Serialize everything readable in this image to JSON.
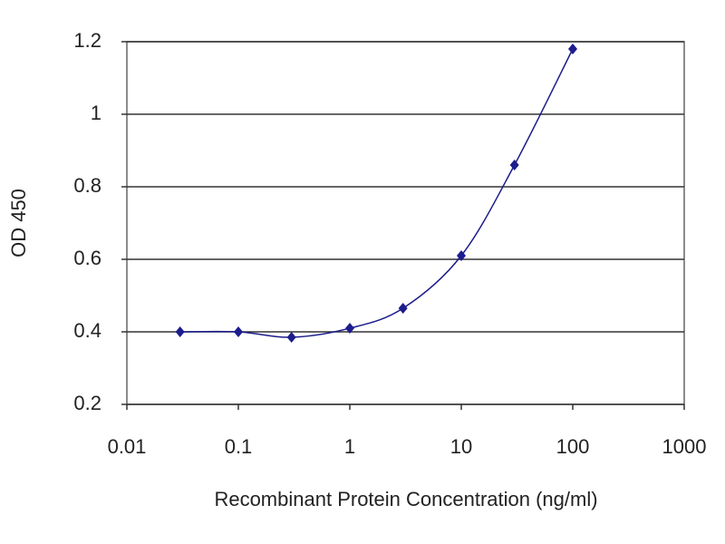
{
  "chart_data": {
    "type": "scatter",
    "x_label": "Recombinant Protein Concentration (ng/ml)",
    "y_label": "OD 450",
    "x": [
      0.03,
      0.1,
      0.3,
      1,
      3,
      10,
      30,
      100
    ],
    "values": [
      0.4,
      0.4,
      0.385,
      0.41,
      0.465,
      0.61,
      0.86,
      1.18
    ],
    "color": "#1c1c8c",
    "xlog": true,
    "xlim": [
      0.01,
      1000
    ],
    "xticks": [
      0.01,
      0.1,
      1,
      10,
      100,
      1000
    ],
    "ylim": [
      0.2,
      1.2
    ],
    "yticks": [
      0.2,
      0.4,
      0.6,
      0.8,
      1,
      1.2
    ],
    "grid": true
  }
}
